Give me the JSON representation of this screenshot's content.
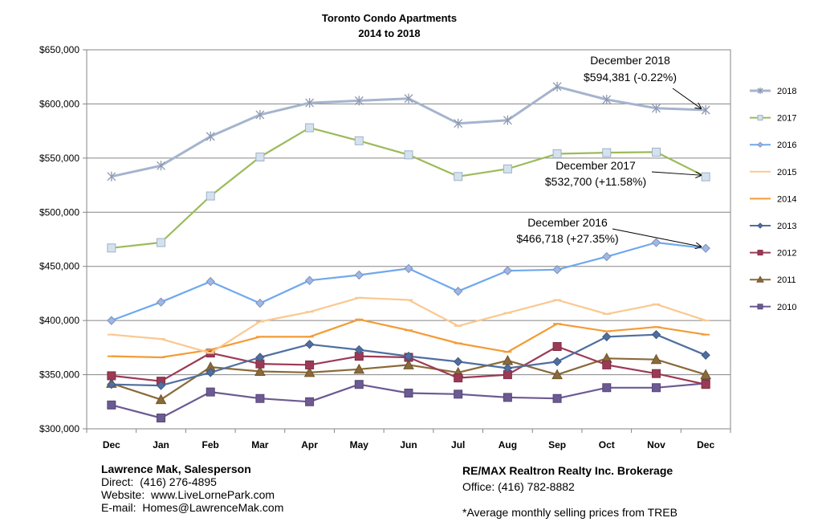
{
  "chart_data": {
    "type": "line",
    "title": "Toronto Condo Apartments",
    "subtitle": "2014 to 2018",
    "categories": [
      "Dec",
      "Jan",
      "Feb",
      "Mar",
      "Apr",
      "May",
      "Jun",
      "Jul",
      "Aug",
      "Sep",
      "Oct",
      "Nov",
      "Dec"
    ],
    "ylim": [
      300000,
      650000
    ],
    "yticks": [
      "$300,000",
      "$350,000",
      "$400,000",
      "$450,000",
      "$500,000",
      "$550,000",
      "$600,000",
      "$650,000"
    ],
    "grid": true,
    "legend_position": "right",
    "series": [
      {
        "name": "2018",
        "color": "#a5b4ce",
        "marker": "star",
        "values": [
          533000,
          543000,
          570000,
          590000,
          601000,
          603000,
          605000,
          582000,
          585000,
          616000,
          604000,
          596000,
          594381
        ]
      },
      {
        "name": "2017",
        "color": "#9bbb59",
        "marker": "square-open",
        "values": [
          467000,
          472000,
          515000,
          551000,
          578000,
          566000,
          553000,
          533000,
          540000,
          554000,
          555000,
          555500,
          532700
        ]
      },
      {
        "name": "2016",
        "color": "#6fa8ee",
        "marker": "diamond",
        "values": [
          400000,
          417000,
          436000,
          416000,
          437000,
          442000,
          448000,
          427000,
          446000,
          447000,
          459000,
          472000,
          466718
        ]
      },
      {
        "name": "2015",
        "color": "#fac890",
        "marker": "dash",
        "values": [
          387000,
          383000,
          370000,
          399000,
          408000,
          421000,
          419000,
          395000,
          407000,
          419000,
          406000,
          415000,
          400000
        ]
      },
      {
        "name": "2014",
        "color": "#f39b36",
        "marker": "dash",
        "values": [
          367000,
          366000,
          373000,
          385000,
          385000,
          401000,
          391000,
          379000,
          371000,
          397000,
          390000,
          394000,
          387000
        ]
      },
      {
        "name": "2013",
        "color": "#4f6fa0",
        "marker": "diamond",
        "values": [
          341000,
          340000,
          352000,
          366000,
          378000,
          373000,
          367000,
          362000,
          356000,
          362000,
          385000,
          387000,
          368000
        ]
      },
      {
        "name": "2012",
        "color": "#9c3a56",
        "marker": "square",
        "values": [
          349000,
          344000,
          370000,
          360000,
          359000,
          367000,
          366000,
          347000,
          350000,
          376000,
          359000,
          351000,
          341000
        ]
      },
      {
        "name": "2011",
        "color": "#8a6a38",
        "marker": "triangle",
        "values": [
          342000,
          327000,
          357000,
          353000,
          352000,
          355000,
          359000,
          352000,
          363000,
          350000,
          365000,
          364000,
          350000
        ]
      },
      {
        "name": "2010",
        "color": "#6c5a92",
        "marker": "square",
        "values": [
          322000,
          310000,
          334000,
          328000,
          325000,
          341000,
          333000,
          332000,
          329000,
          328000,
          338000,
          338000,
          342000
        ]
      }
    ],
    "annotations": [
      {
        "line1": "December 2018",
        "line2": "$594,381 (-0.22%)",
        "series": "2018",
        "index": 12
      },
      {
        "line1": "December  2017",
        "line2": "$532,700 (+11.58%)",
        "series": "2017",
        "index": 12
      },
      {
        "line1": "December 2016",
        "line2": "$466,718 (+27.35%)",
        "series": "2016",
        "index": 12
      }
    ]
  },
  "footer": {
    "left": {
      "name": "Lawrence Mak, Salesperson",
      "direct": "Direct:  (416) 276-4895",
      "website": "Website:  www.LiveLornePark.com",
      "email": "E-mail:  Homes@LawrenceMak.com"
    },
    "right": {
      "brokerage": "RE/MAX Realtron Realty Inc. Brokerage",
      "office": "Office: (416) 782-8882",
      "note": "*Average monthly selling prices from TREB"
    }
  }
}
